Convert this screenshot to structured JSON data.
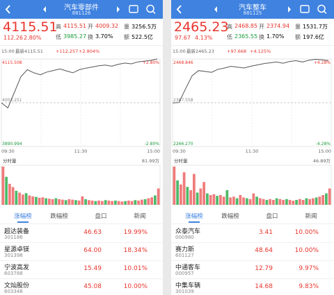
{
  "panels": [
    {
      "header": {
        "title": "汽车零部件",
        "code": "881126"
      },
      "quote": {
        "price": "4115.51",
        "change": "112.26",
        "pct": "2.80%",
        "row1": [
          [
            "高",
            "4115.51"
          ],
          [
            "开",
            "4009.32"
          ],
          [
            "量",
            "3256.5万"
          ]
        ],
        "row2": [
          [
            "低",
            "3985.27"
          ],
          [
            "换",
            "3.70%"
          ],
          [
            "额",
            "522.5亿"
          ]
        ]
      },
      "chart": {
        "time": "15:00",
        "latest": "最新4115.51",
        "delta": "+112.257",
        "delta_pct": "+2.804%",
        "high": 4115.508,
        "high_pct": "+2.80%",
        "mid": "4003.251",
        "low": 3890.994,
        "low_pct": "-2.80%",
        "times": [
          "09:30",
          "11:30",
          "15:00"
        ],
        "volume_label": "分时量",
        "volume_max": "81.99万",
        "line": [
          4003,
          3990,
          4030,
          4070,
          4088,
          4080,
          4075,
          4082,
          4086,
          4090,
          4085,
          4080,
          4088,
          4092,
          4095,
          4098,
          4100,
          4097,
          4102,
          4105,
          4103,
          4108,
          4110,
          4112,
          4115.5
        ],
        "volume": [
          82,
          60,
          45,
          38,
          30,
          26,
          22,
          25,
          20,
          18,
          17,
          15,
          16,
          14,
          13,
          12,
          14,
          12,
          11,
          10,
          12,
          11,
          10,
          9,
          18,
          12,
          10,
          9,
          8,
          9,
          8,
          10,
          9,
          8,
          9,
          8,
          7,
          8,
          9,
          8,
          10,
          9,
          11,
          12,
          14,
          16,
          20,
          35
        ]
      },
      "tabs": [
        "涨幅榜",
        "跌幅榜",
        "盘口",
        "新闻"
      ],
      "rows": [
        [
          "超达装备",
          "301186",
          "46.63",
          "19.99%"
        ],
        [
          "星源卓镁",
          "301398",
          "64.00",
          "18.34%"
        ],
        [
          "宁波高发",
          "603788",
          "15.49",
          "10.01%"
        ],
        [
          "文灿股份",
          "603348",
          "45.08",
          "10.00%"
        ]
      ]
    },
    {
      "header": {
        "title": "汽车整车",
        "code": "881125"
      },
      "quote": {
        "price": "2465.23",
        "change": "97.67",
        "pct": "4.13%",
        "row1": [
          [
            "高",
            "2468.85"
          ],
          [
            "开",
            "2374.94"
          ],
          [
            "量",
            "1531.7万"
          ]
        ],
        "row2": [
          [
            "低",
            "2365.55"
          ],
          [
            "换",
            "1.70%"
          ],
          [
            "额",
            "197.6亿"
          ]
        ]
      },
      "chart": {
        "time": "15:00",
        "latest": "最新2465.23",
        "delta": "+97.668",
        "delta_pct": "+4.125%",
        "high": 2468.846,
        "high_pct": "+4.28%",
        "mid": "2367.558",
        "low": {
          "value": 2266.27,
          "label": "2266.270"
        },
        "low_pct": "-4.28%",
        "times": [
          "09:30",
          "11:30",
          "15:00"
        ],
        "volume_label": "分时量",
        "volume_max": "46.89万",
        "line": [
          2367,
          2368,
          2400,
          2430,
          2442,
          2440,
          2438,
          2445,
          2448,
          2452,
          2450,
          2448,
          2452,
          2455,
          2458,
          2460,
          2462,
          2459,
          2463,
          2465,
          2462,
          2466,
          2468,
          2467,
          2465.2
        ],
        "volume": [
          47,
          30,
          25,
          40,
          22,
          18,
          38,
          15,
          20,
          28,
          14,
          12,
          13,
          11,
          12,
          10,
          18,
          9,
          10,
          8,
          12,
          9,
          8,
          7,
          14,
          10,
          8,
          7,
          6,
          7,
          6,
          8,
          7,
          6,
          7,
          6,
          5,
          6,
          7,
          6,
          8,
          7,
          8,
          9,
          10,
          12,
          14,
          20
        ]
      },
      "tabs": [
        "涨幅榜",
        "跌幅榜",
        "盘口",
        "新闻"
      ],
      "rows": [
        [
          "众泰汽车",
          "000980",
          "3.41",
          "10.00%"
        ],
        [
          "赛力斯",
          "601127",
          "48.64",
          "10.00%"
        ],
        [
          "中通客车",
          "000957",
          "12.79",
          "9.97%"
        ],
        [
          "中集车辆",
          "301039",
          "14.68",
          "9.83%"
        ]
      ]
    }
  ]
}
